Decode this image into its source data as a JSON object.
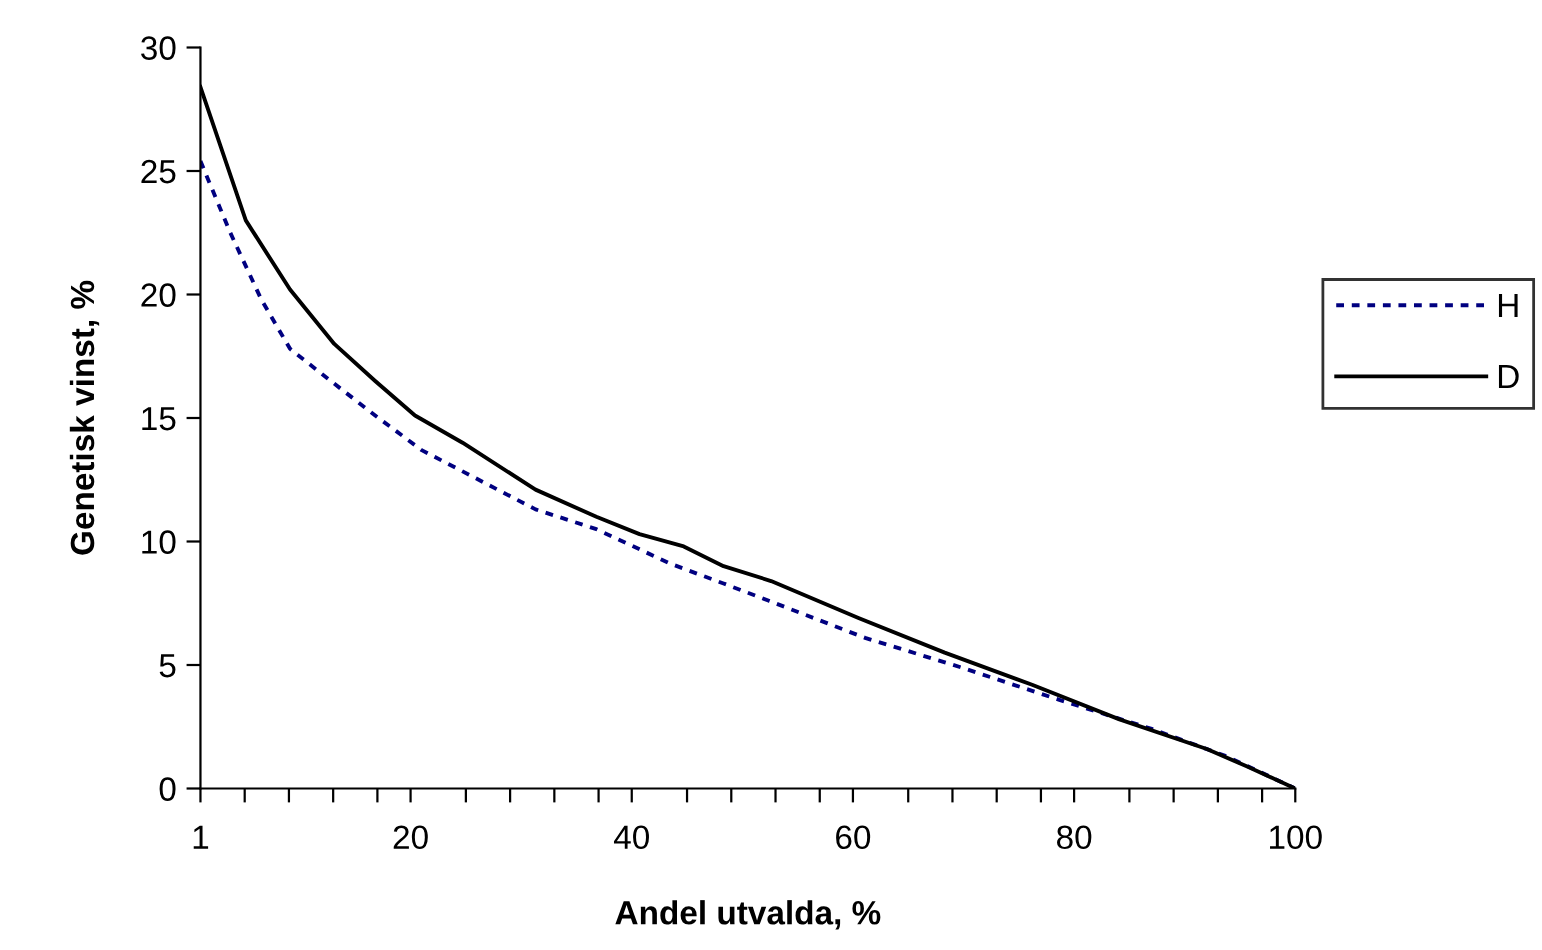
{
  "chart_data": {
    "type": "line",
    "xlabel": "Andel utvalda, %",
    "ylabel": "Genetisk vinst, %",
    "xlim": [
      1,
      100
    ],
    "ylim": [
      0,
      30
    ],
    "xticks": [
      1,
      {
        "value": 5,
        "label": null
      },
      {
        "value": 9,
        "label": null
      },
      {
        "value": 13,
        "label": null
      },
      {
        "value": 17,
        "label": null
      },
      20,
      {
        "value": 25,
        "label": null
      },
      {
        "value": 29,
        "label": null
      },
      {
        "value": 33,
        "label": null
      },
      {
        "value": 37,
        "label": null
      },
      40,
      {
        "value": 45,
        "label": null
      },
      {
        "value": 49,
        "label": null
      },
      {
        "value": 53,
        "label": null
      },
      {
        "value": 57,
        "label": null
      },
      60,
      {
        "value": 65,
        "label": null
      },
      {
        "value": 69,
        "label": null
      },
      {
        "value": 73,
        "label": null
      },
      {
        "value": 77,
        "label": null
      },
      80,
      {
        "value": 85,
        "label": null
      },
      {
        "value": 89,
        "label": null
      },
      {
        "value": 93,
        "label": null
      },
      {
        "value": 97,
        "label": null
      },
      100
    ],
    "yticks": [
      0,
      5,
      10,
      15,
      20,
      25,
      30
    ],
    "grid": false,
    "legend": "right",
    "marker": "none",
    "series": [
      {
        "name": "H",
        "color": "#000080",
        "line_style": "dashed",
        "x": [
          1,
          3.7,
          6.5,
          9.1,
          12.5,
          16.8,
          21,
          25.3,
          31.3,
          36.8,
          43.5,
          48.3,
          52.4,
          61.1,
          69.8,
          78.6,
          87.1,
          93.8,
          100
        ],
        "values": [
          25.4,
          22.5,
          19.8,
          17.8,
          16.6,
          15.1,
          13.7,
          12.7,
          11.3,
          10.5,
          9.1,
          8.3,
          7.6,
          6.1,
          4.9,
          3.6,
          2.4,
          1.3,
          0
        ]
      },
      {
        "name": "D",
        "color": "#000000",
        "line_style": "solid",
        "x": [
          1,
          5.1,
          9.1,
          13.1,
          16.8,
          20.4,
          24.7,
          31.3,
          36.8,
          40.7,
          44.7,
          48.3,
          52.6,
          60.5,
          68.3,
          76.2,
          84.1,
          92,
          95.6,
          100
        ],
        "values": [
          28.4,
          23,
          20.2,
          18,
          16.5,
          15.1,
          14,
          12.1,
          11,
          10.3,
          9.8,
          9,
          8.4,
          6.9,
          5.5,
          4.2,
          2.8,
          1.6,
          0.9,
          0
        ]
      }
    ]
  }
}
